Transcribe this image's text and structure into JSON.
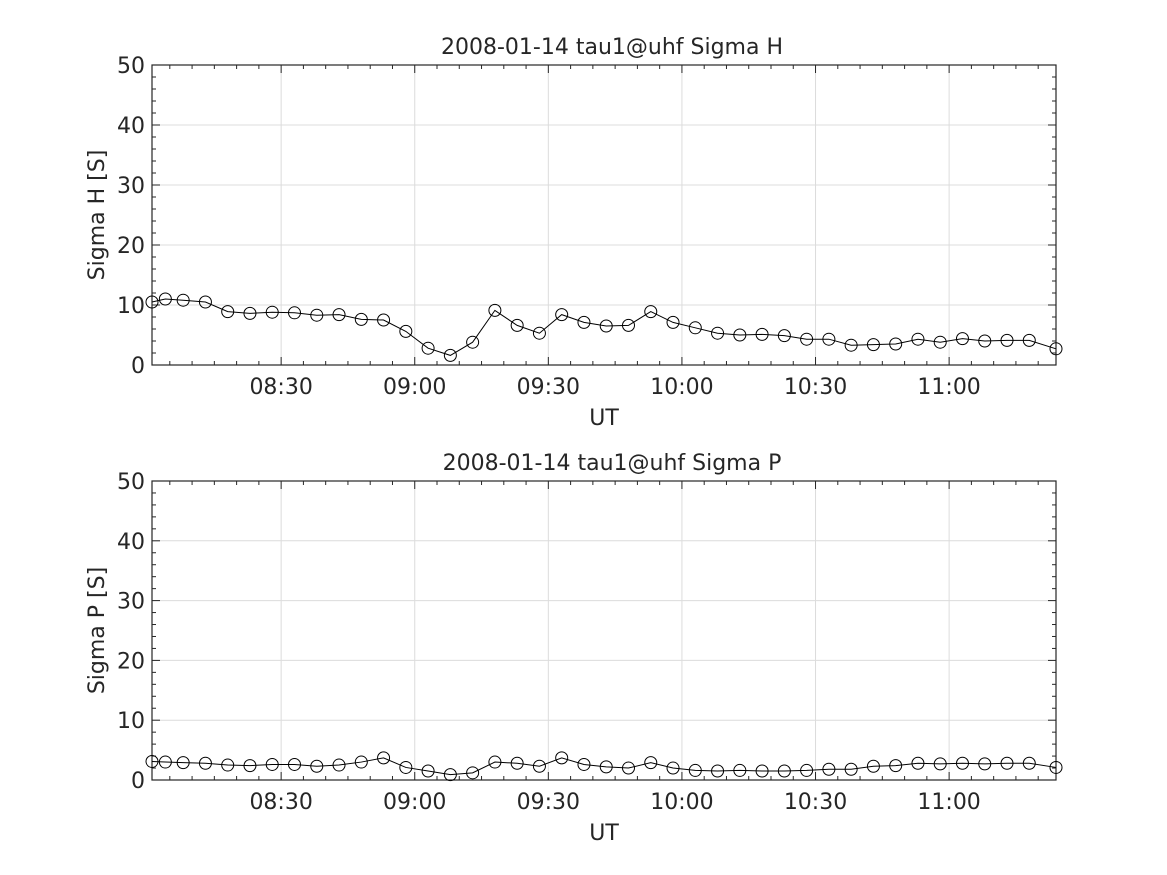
{
  "chart_data": [
    {
      "type": "line",
      "title": "2008-01-14  tau1@uhf Sigma H",
      "xlabel": "UT",
      "ylabel": "Sigma H [S]",
      "ylim": [
        0,
        50
      ],
      "xlim": [
        "08:01",
        "11:24"
      ],
      "yticks": [
        "0",
        "10",
        "20",
        "30",
        "40",
        "50"
      ],
      "xticks": [
        "08:30",
        "09:00",
        "09:30",
        "10:00",
        "10:30",
        "11:00"
      ],
      "grid": true,
      "marker": "open-circle",
      "line_color": "#000000",
      "x": [
        "08:01",
        "08:04",
        "08:08",
        "08:13",
        "08:18",
        "08:23",
        "08:28",
        "08:33",
        "08:38",
        "08:43",
        "08:48",
        "08:53",
        "08:58",
        "09:03",
        "09:08",
        "09:13",
        "09:18",
        "09:23",
        "09:28",
        "09:33",
        "09:38",
        "09:43",
        "09:48",
        "09:53",
        "09:58",
        "10:03",
        "10:08",
        "10:13",
        "10:18",
        "10:23",
        "10:28",
        "10:33",
        "10:38",
        "10:43",
        "10:48",
        "10:53",
        "10:58",
        "11:03",
        "11:08",
        "11:13",
        "11:18",
        "11:24"
      ],
      "values": [
        10.5,
        11.0,
        10.8,
        10.5,
        8.9,
        8.6,
        8.8,
        8.7,
        8.3,
        8.4,
        7.6,
        7.5,
        5.6,
        2.8,
        1.6,
        3.8,
        9.1,
        6.6,
        5.3,
        8.4,
        7.1,
        6.5,
        6.6,
        8.9,
        7.1,
        6.2,
        5.3,
        5.0,
        5.1,
        4.9,
        4.3,
        4.3,
        3.3,
        3.4,
        3.5,
        4.3,
        3.8,
        4.4,
        4.0,
        4.1,
        4.1,
        2.7
      ]
    },
    {
      "type": "line",
      "title": "2008-01-14  tau1@uhf Sigma P",
      "xlabel": "UT",
      "ylabel": "Sigma P [S]",
      "ylim": [
        0,
        50
      ],
      "xlim": [
        "08:01",
        "11:24"
      ],
      "yticks": [
        "0",
        "10",
        "20",
        "30",
        "40",
        "50"
      ],
      "xticks": [
        "08:30",
        "09:00",
        "09:30",
        "10:00",
        "10:30",
        "11:00"
      ],
      "grid": true,
      "marker": "open-circle",
      "line_color": "#000000",
      "x": [
        "08:01",
        "08:04",
        "08:08",
        "08:13",
        "08:18",
        "08:23",
        "08:28",
        "08:33",
        "08:38",
        "08:43",
        "08:48",
        "08:53",
        "08:58",
        "09:03",
        "09:08",
        "09:13",
        "09:18",
        "09:23",
        "09:28",
        "09:33",
        "09:38",
        "09:43",
        "09:48",
        "09:53",
        "09:58",
        "10:03",
        "10:08",
        "10:13",
        "10:18",
        "10:23",
        "10:28",
        "10:33",
        "10:38",
        "10:43",
        "10:48",
        "10:53",
        "10:58",
        "11:03",
        "11:08",
        "11:13",
        "11:18",
        "11:24"
      ],
      "values": [
        3.1,
        3.0,
        2.9,
        2.8,
        2.5,
        2.4,
        2.6,
        2.6,
        2.3,
        2.5,
        3.0,
        3.7,
        2.1,
        1.5,
        0.9,
        1.2,
        3.0,
        2.8,
        2.3,
        3.7,
        2.6,
        2.2,
        2.0,
        2.9,
        2.0,
        1.6,
        1.5,
        1.6,
        1.5,
        1.5,
        1.6,
        1.8,
        1.8,
        2.3,
        2.4,
        2.8,
        2.7,
        2.8,
        2.7,
        2.8,
        2.8,
        2.1
      ]
    }
  ]
}
